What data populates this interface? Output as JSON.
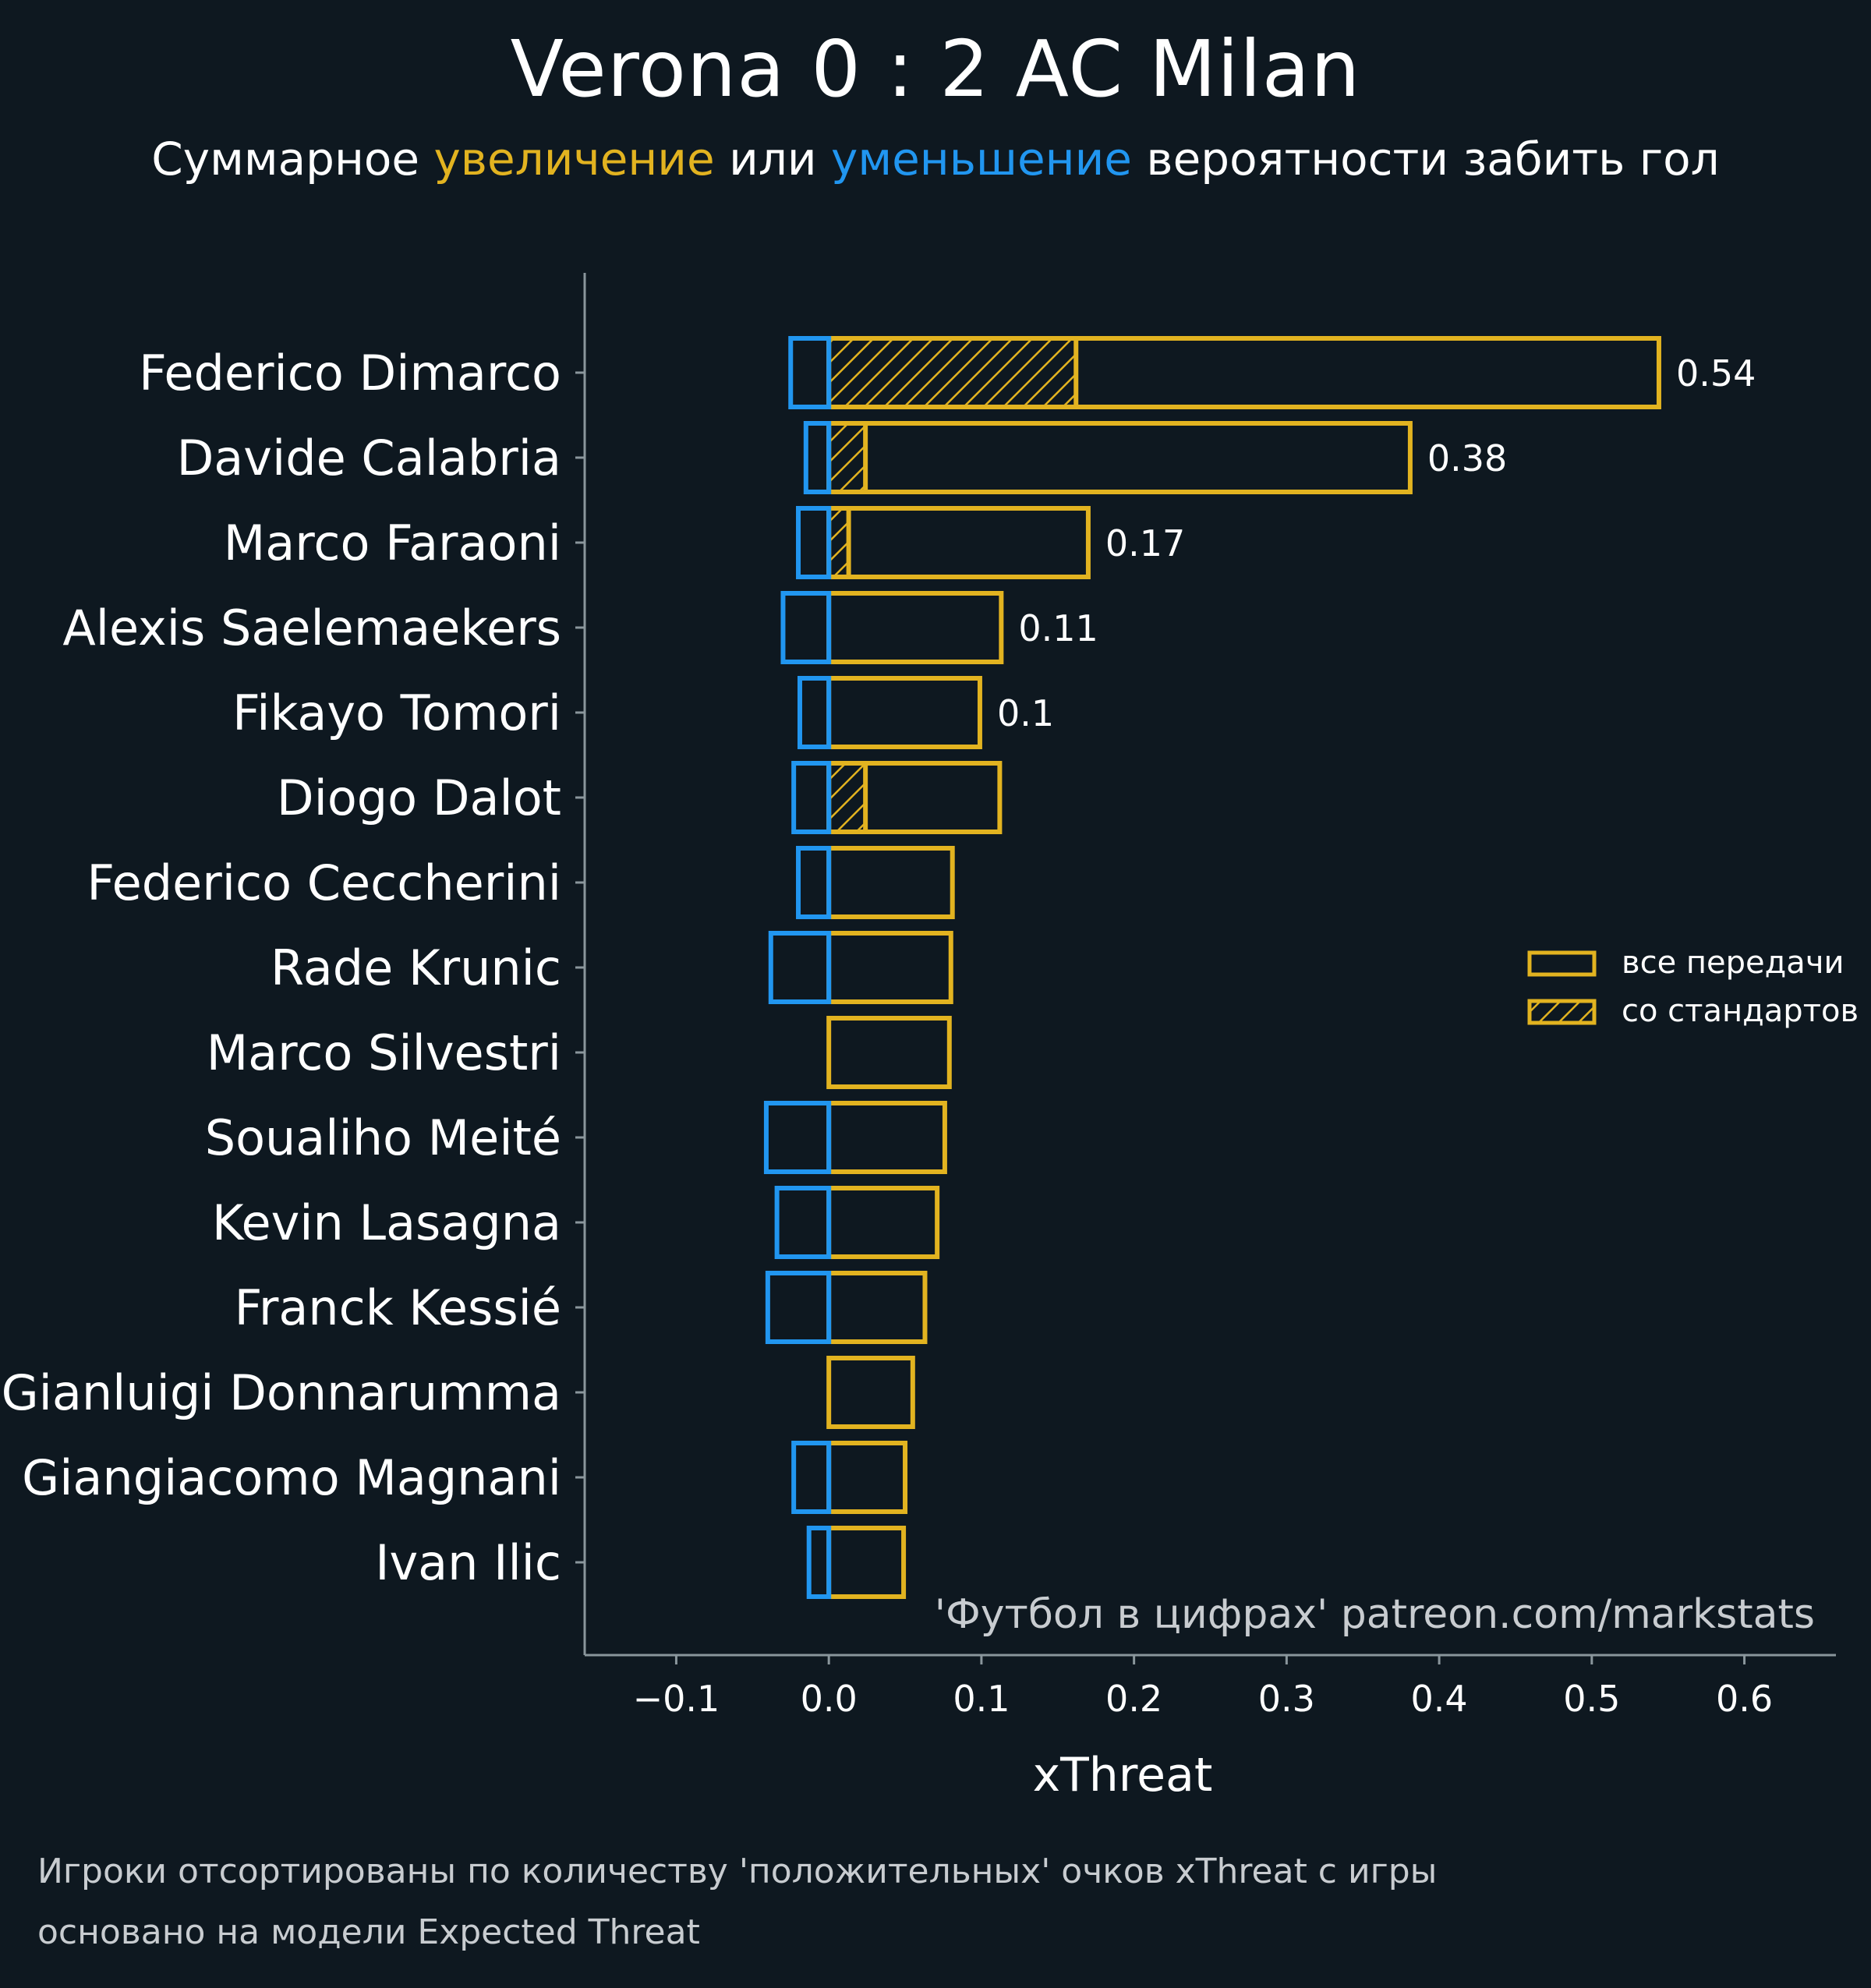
{
  "title": "Verona 0 : 2 AC Milan",
  "subtitle": {
    "prefix": "Суммарное",
    "positive_word": "увеличение",
    "middle": "или",
    "negative_word": "уменьшение",
    "suffix": "вероятности забить гол"
  },
  "colors": {
    "background": "#0e1820",
    "positive": "#e2b320",
    "negative": "#2196f0",
    "axis": "#8a969c",
    "text": "#ffffff",
    "muted": "#c8ccd0"
  },
  "watermark": "'Футбол в цифрах' patreon.com/markstats",
  "footnotes": [
    "Игроки отсортированы по количеству 'положительных' очков xThreat с игры",
    "основано на модели Expected Threat"
  ],
  "chart_data": {
    "type": "bar",
    "orientation": "horizontal",
    "xlabel": "xThreat",
    "xlim": [
      -0.16,
      0.66
    ],
    "xticks": [
      -0.1,
      0.0,
      0.1,
      0.2,
      0.3,
      0.4,
      0.5,
      0.6
    ],
    "xtick_labels": [
      "−0.1",
      "0.0",
      "0.1",
      "0.2",
      "0.3",
      "0.4",
      "0.5",
      "0.6"
    ],
    "legend": {
      "position": "center-right",
      "entries": [
        {
          "label": "все передачи",
          "style": "outline"
        },
        {
          "label": "со стандартов",
          "style": "hatched"
        }
      ]
    },
    "categories": [
      "Federico Dimarco",
      "Davide Calabria",
      "Marco Faraoni",
      "Alexis Saelemaekers",
      "Fikayo Tomori",
      "Diogo Dalot",
      "Federico Ceccherini",
      "Rade Krunic",
      "Marco Silvestri",
      "Soualiho Meité",
      "Kevin Lasagna",
      "Franck Kessié",
      "Gianluigi Donnarumma",
      "Giangiacomo Magnani",
      "Ivan Ilic"
    ],
    "series": [
      {
        "name": "positive xThreat (все передачи)",
        "values": [
          0.544,
          0.381,
          0.17,
          0.113,
          0.099,
          0.112,
          0.081,
          0.08,
          0.079,
          0.076,
          0.071,
          0.063,
          0.055,
          0.05,
          0.049
        ]
      },
      {
        "name": "positive xThreat (со стандартов)",
        "values": [
          0.162,
          0.024,
          0.013,
          0,
          0,
          0.024,
          0,
          0,
          0,
          0,
          0,
          0,
          0,
          0,
          0
        ]
      },
      {
        "name": "negative xThreat",
        "values": [
          -0.025,
          -0.015,
          -0.02,
          -0.03,
          -0.019,
          -0.023,
          -0.02,
          -0.038,
          0,
          -0.041,
          -0.034,
          -0.04,
          0,
          -0.023,
          -0.013
        ]
      }
    ],
    "value_labels": [
      "0.54",
      "0.38",
      "0.17",
      "0.11",
      "0.1",
      "",
      "",
      "",
      "",
      "",
      "",
      "",
      "",
      "",
      ""
    ]
  }
}
